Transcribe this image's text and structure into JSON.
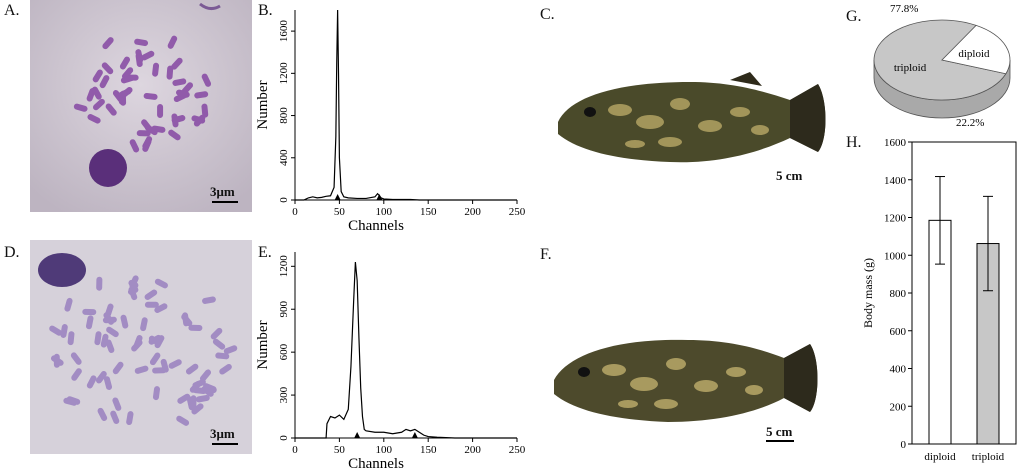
{
  "figure": {
    "panels": {
      "A": {
        "label": "A.",
        "scale": "3μm"
      },
      "B": {
        "label": "B."
      },
      "C": {
        "label": "C.",
        "scale": "5 cm"
      },
      "D": {
        "label": "D.",
        "scale": "3μm"
      },
      "E": {
        "label": "E."
      },
      "F": {
        "label": "F.",
        "scale": "5 cm"
      },
      "G": {
        "label": "G."
      },
      "H": {
        "label": "H."
      }
    }
  },
  "chart_data": [
    {
      "id": "B",
      "type": "line",
      "xlabel": "Channels",
      "ylabel": "Number",
      "xlim": [
        0,
        250
      ],
      "ylim": [
        0,
        1800
      ],
      "xticks": [
        0,
        50,
        100,
        150,
        200,
        250
      ],
      "yticks": [
        0,
        400,
        800,
        1200,
        1600
      ],
      "markers": [
        48,
        95
      ],
      "series": [
        {
          "x": [
            0,
            5,
            10,
            15,
            20,
            25,
            30,
            35,
            40,
            44,
            46,
            47,
            48,
            49,
            50,
            52,
            55,
            60,
            70,
            80,
            90,
            93,
            95,
            97,
            100,
            110,
            120,
            130,
            140,
            150,
            160,
            170,
            180,
            190,
            200,
            210,
            220,
            230,
            240,
            250
          ],
          "y": [
            0,
            0,
            0,
            20,
            30,
            20,
            25,
            35,
            40,
            120,
            600,
            1300,
            1800,
            1200,
            400,
            80,
            30,
            20,
            15,
            15,
            30,
            60,
            40,
            20,
            10,
            5,
            5,
            5,
            0,
            0,
            0,
            0,
            0,
            0,
            0,
            0,
            0,
            0,
            0,
            0
          ]
        }
      ]
    },
    {
      "id": "E",
      "type": "line",
      "xlabel": "Channels",
      "ylabel": "Number",
      "xlim": [
        0,
        250
      ],
      "ylim": [
        0,
        1300
      ],
      "xticks": [
        0,
        50,
        100,
        150,
        200,
        250
      ],
      "yticks": [
        0,
        300,
        600,
        900,
        1200
      ],
      "markers": [
        70,
        135
      ],
      "series": [
        {
          "x": [
            0,
            20,
            30,
            35,
            36,
            40,
            45,
            50,
            55,
            60,
            63,
            66,
            68,
            70,
            72,
            74,
            76,
            78,
            80,
            90,
            100,
            110,
            120,
            125,
            130,
            135,
            140,
            145,
            150,
            160,
            180,
            200,
            220,
            250
          ],
          "y": [
            0,
            0,
            0,
            0,
            100,
            150,
            140,
            160,
            130,
            200,
            500,
            950,
            1230,
            1100,
            700,
            350,
            150,
            60,
            50,
            40,
            40,
            30,
            40,
            60,
            50,
            60,
            40,
            20,
            10,
            5,
            0,
            0,
            0,
            0
          ]
        }
      ]
    },
    {
      "id": "G",
      "type": "pie",
      "slices": [
        {
          "label": "triploid",
          "value": 77.8,
          "text": "77.8%",
          "color": "#c7c7c7"
        },
        {
          "label": "diploid",
          "value": 22.2,
          "text": "22.2%",
          "color": "#ffffff"
        }
      ]
    },
    {
      "id": "H",
      "type": "bar",
      "ylabel": "Body mass (g)",
      "ylim": [
        0,
        1600
      ],
      "yticks": [
        0,
        200,
        400,
        600,
        800,
        1000,
        1200,
        1400,
        1600
      ],
      "categories": [
        "diploid",
        "triploid"
      ],
      "values": [
        1185,
        1062
      ],
      "errors": [
        232,
        250
      ],
      "colors": [
        "#ffffff",
        "#c7c7c7"
      ]
    }
  ]
}
